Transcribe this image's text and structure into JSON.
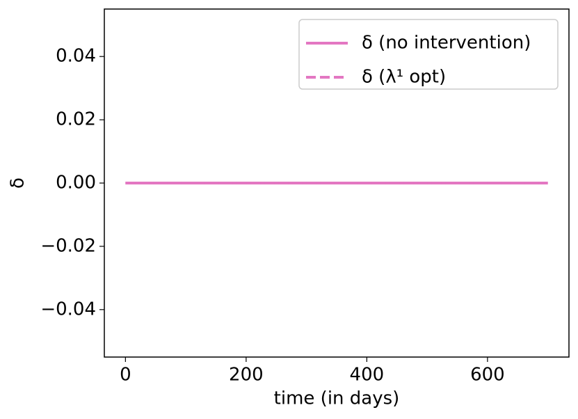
{
  "chart_data": {
    "type": "line",
    "x_label": "time (in days)",
    "y_label": "δ",
    "x": [
      0,
      700
    ],
    "series": [
      {
        "name": "δ (no intervention)",
        "color": "#e377c2",
        "style": "solid",
        "values": [
          0,
          0
        ]
      },
      {
        "name": "δ (λ¹ opt)",
        "color": "#e377c2",
        "style": "dashed",
        "values": [
          0,
          0
        ]
      }
    ],
    "xlim": [
      -35,
      735
    ],
    "xticks": [
      0,
      200,
      400,
      600
    ],
    "ylim": [
      -0.055,
      0.055
    ],
    "yticks": [
      {
        "value": -0.04,
        "label": "−0.04"
      },
      {
        "value": -0.02,
        "label": "−0.02"
      },
      {
        "value": 0,
        "label": "0.00"
      },
      0.02,
      0.04
    ],
    "legend": "upper right"
  }
}
